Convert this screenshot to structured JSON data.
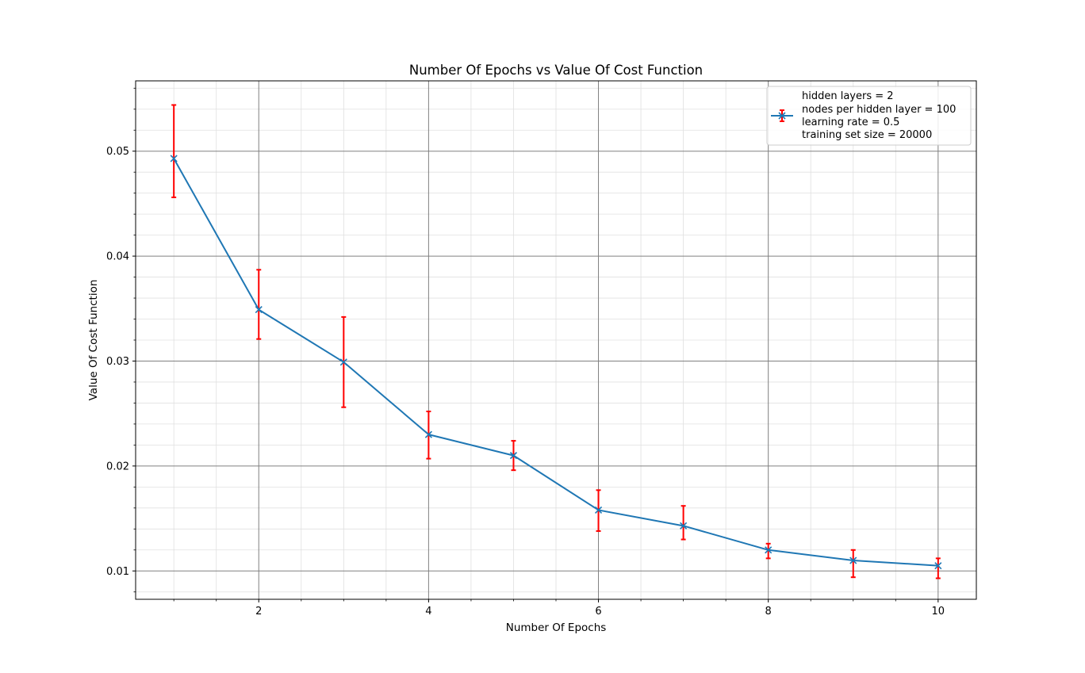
{
  "chart_data": {
    "type": "line",
    "title": "Number Of Epochs vs Value Of Cost Function",
    "xlabel": "Number Of Epochs",
    "ylabel": "Value Of Cost Function",
    "xlim": [
      0.55,
      10.45
    ],
    "ylim": [
      0.0073,
      0.0567
    ],
    "x_major_ticks": [
      2,
      4,
      6,
      8,
      10
    ],
    "x_tick_labels": [
      "2",
      "4",
      "6",
      "8",
      "10"
    ],
    "x_minor_step": 0.5,
    "y_major_ticks": [
      0.01,
      0.02,
      0.03,
      0.04,
      0.05
    ],
    "y_tick_labels": [
      "0.01",
      "0.02",
      "0.03",
      "0.04",
      "0.05"
    ],
    "y_minor_step": 0.002,
    "grid": true,
    "legend_position": "top-right",
    "legend_lines": [
      "hidden layers = 2",
      "nodes per hidden layer = 100",
      "learning rate = 0.5",
      "training set size = 20000"
    ],
    "colors": {
      "line": "#1f77b4",
      "errorbar": "#ff0000",
      "major_grid": "#808080",
      "minor_grid": "#e0e0e0"
    },
    "series": [
      {
        "x": [
          1,
          2,
          3,
          4,
          5,
          6,
          7,
          8,
          9,
          10
        ],
        "values": [
          0.0493,
          0.0349,
          0.0299,
          0.023,
          0.021,
          0.0158,
          0.0143,
          0.012,
          0.011,
          0.0105
        ],
        "error_lower": [
          0.0456,
          0.0321,
          0.0256,
          0.0207,
          0.0196,
          0.0138,
          0.013,
          0.0112,
          0.0094,
          0.0093
        ],
        "error_upper": [
          0.0544,
          0.0387,
          0.0342,
          0.0252,
          0.0224,
          0.0177,
          0.0162,
          0.0126,
          0.012,
          0.0112
        ]
      }
    ]
  }
}
